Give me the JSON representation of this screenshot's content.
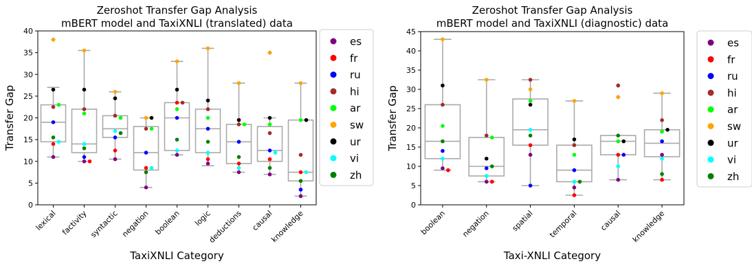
{
  "colors": {
    "es": "#800080",
    "fr": "#ff0000",
    "ru": "#0000ff",
    "hi": "#a52a2a",
    "ar": "#00ff00",
    "sw": "#ffa500",
    "ur": "#000000",
    "vi": "#00ffff",
    "zh": "#008000"
  },
  "legend": [
    "es",
    "fr",
    "ru",
    "hi",
    "ar",
    "sw",
    "ur",
    "vi",
    "zh"
  ],
  "chart_data": [
    {
      "type": "box",
      "title": "Zeroshot Transfer Gap Analysis",
      "subtitle": "mBERT model and TaxiXNLI (translated) data",
      "xlabel": "TaxiXNLI Category",
      "ylabel": "Transfer Gap",
      "ylim": [
        0,
        40
      ],
      "yticks": [
        0,
        5,
        10,
        15,
        20,
        25,
        30,
        35,
        40
      ],
      "categories": [
        "lexical",
        "factivity",
        "syntactic",
        "negation",
        "boolean",
        "logic",
        "deductions",
        "causal",
        "knowledge"
      ],
      "boxes": [
        {
          "whislo": 11,
          "q1": 14.5,
          "med": 19,
          "q3": 23,
          "whishi": 27,
          "fliers": [
            38
          ]
        },
        {
          "whislo": 10,
          "q1": 12,
          "med": 14,
          "q3": 22,
          "whishi": 35.5,
          "fliers": []
        },
        {
          "whislo": 10.5,
          "q1": 15.5,
          "med": 17.5,
          "q3": 20.5,
          "whishi": 26,
          "fliers": []
        },
        {
          "whislo": 4,
          "q1": 8,
          "med": 12,
          "q3": 18,
          "whishi": 20,
          "fliers": []
        },
        {
          "whislo": 11.5,
          "q1": 12.5,
          "med": 20,
          "q3": 23.5,
          "whishi": 33,
          "fliers": []
        },
        {
          "whislo": 9,
          "q1": 12,
          "med": 17.5,
          "q3": 22,
          "whishi": 36,
          "fliers": []
        },
        {
          "whislo": 7.5,
          "q1": 9.5,
          "med": 14.5,
          "q3": 18.5,
          "whishi": 28,
          "fliers": []
        },
        {
          "whislo": 7,
          "q1": 10,
          "med": 12.5,
          "q3": 18,
          "whishi": 20,
          "fliers": [
            35
          ]
        },
        {
          "whislo": 2,
          "q1": 5.5,
          "med": 7.5,
          "q3": 19.5,
          "whishi": 28,
          "fliers": []
        }
      ],
      "points": {
        "es": [
          11,
          10,
          10.5,
          4,
          11.5,
          9.5,
          7.5,
          7,
          2
        ],
        "fr": [
          14,
          10,
          12.5,
          8.5,
          23.5,
          10.5,
          9.5,
          10.5,
          7.5
        ],
        "ru": [
          19,
          11,
          15.5,
          12,
          20,
          17.5,
          14.5,
          12.5,
          3.5
        ],
        "hi": [
          22.5,
          22,
          20.5,
          17.5,
          23.5,
          22,
          18.5,
          16.5,
          11.5
        ],
        "ar": [
          23,
          21,
          20,
          17.5,
          22,
          20,
          18.5,
          18.5,
          19.5
        ],
        "sw": [
          38,
          35.5,
          26,
          20,
          33,
          36,
          28,
          35,
          28
        ],
        "ur": [
          26.5,
          26.5,
          24.5,
          20,
          26.5,
          24,
          19.5,
          20,
          19.5
        ],
        "vi": [
          14.5,
          14,
          17,
          8.5,
          12.5,
          12,
          8.5,
          12,
          7.5
        ],
        "zh": [
          15.5,
          13,
          16.5,
          7.5,
          15,
          14.5,
          11,
          8.5,
          5.5
        ]
      }
    },
    {
      "type": "box",
      "title": "Zeroshot Transfer Gap Analysis",
      "subtitle": "mBERT model and TaxiXNLI (diagnostic) data",
      "xlabel": "Taxi-XNLI Category",
      "ylabel": "Transfer Gap",
      "ylim": [
        0,
        45
      ],
      "yticks": [
        0,
        5,
        10,
        15,
        20,
        25,
        30,
        35,
        40,
        45
      ],
      "categories": [
        "boolean",
        "negation",
        "spatial",
        "temporal",
        "causal",
        "knowledge"
      ],
      "boxes": [
        {
          "whislo": 9,
          "q1": 12,
          "med": 16.5,
          "q3": 26,
          "whishi": 43,
          "fliers": []
        },
        {
          "whislo": 6,
          "q1": 7.5,
          "med": 10,
          "q3": 17.5,
          "whishi": 32.5,
          "fliers": []
        },
        {
          "whislo": 5,
          "q1": 15.5,
          "med": 19.5,
          "q3": 27.5,
          "whishi": 32.5,
          "fliers": []
        },
        {
          "whislo": 2.5,
          "q1": 6,
          "med": 9,
          "q3": 15.5,
          "whishi": 27,
          "fliers": []
        },
        {
          "whislo": 6.5,
          "q1": 13,
          "med": 16.5,
          "q3": 18,
          "whishi": 18,
          "fliers": [
            28,
            31
          ]
        },
        {
          "whislo": 6.5,
          "q1": 12.5,
          "med": 16,
          "q3": 19.5,
          "whishi": 29,
          "fliers": []
        }
      ],
      "points": {
        "es": [
          9.5,
          6,
          13,
          4.5,
          6.5,
          13
        ],
        "fr": [
          9,
          6,
          15.5,
          2.5,
          13,
          6.5
        ],
        "ru": [
          14,
          9.5,
          5,
          9,
          13,
          16.5
        ],
        "hi": [
          26,
          18,
          32.5,
          15.5,
          31,
          22
        ],
        "ar": [
          20.5,
          17.5,
          27,
          13,
          16.5,
          19
        ],
        "sw": [
          43,
          32.5,
          30,
          27,
          28,
          29
        ],
        "ur": [
          31,
          12,
          26,
          17,
          16.5,
          19.5
        ],
        "vi": [
          12,
          7.5,
          19.5,
          6,
          10,
          12
        ],
        "zh": [
          16.5,
          10,
          18,
          6,
          18,
          8
        ]
      }
    }
  ]
}
